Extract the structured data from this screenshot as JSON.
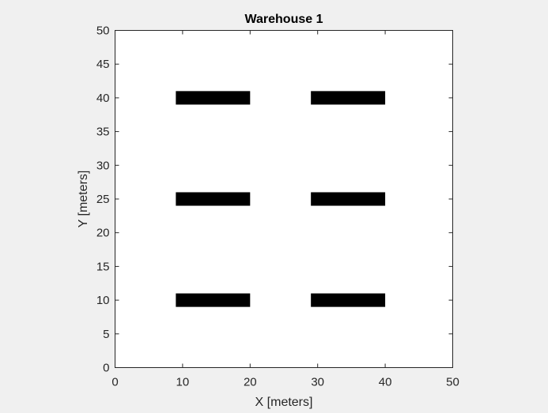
{
  "chart_data": {
    "type": "occupancy-map",
    "title": "Warehouse 1",
    "xlabel": "X [meters]",
    "ylabel": "Y [meters]",
    "xlim": [
      0,
      50
    ],
    "ylim": [
      0,
      50
    ],
    "xticks": [
      0,
      10,
      20,
      30,
      40,
      50
    ],
    "yticks": [
      0,
      5,
      10,
      15,
      20,
      25,
      30,
      35,
      40,
      45,
      50
    ],
    "grid": false,
    "shelves": [
      {
        "x0": 9,
        "x1": 20,
        "y0": 9,
        "y1": 11
      },
      {
        "x0": 29,
        "x1": 40,
        "y0": 9,
        "y1": 11
      },
      {
        "x0": 9,
        "x1": 20,
        "y0": 24,
        "y1": 26
      },
      {
        "x0": 29,
        "x1": 40,
        "y0": 24,
        "y1": 26
      },
      {
        "x0": 9,
        "x1": 20,
        "y0": 39,
        "y1": 41
      },
      {
        "x0": 29,
        "x1": 40,
        "y0": 39,
        "y1": 41
      }
    ],
    "colors": {
      "background": "#f0f0f0",
      "plot_area": "#ffffff",
      "obstacle": "#000000",
      "axis": "#262626"
    }
  }
}
